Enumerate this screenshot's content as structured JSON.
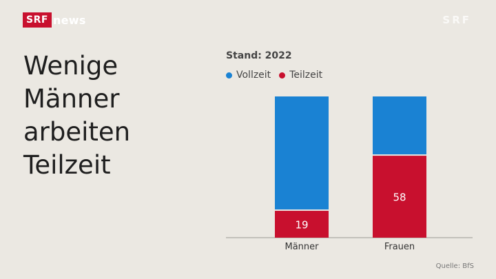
{
  "brand": {
    "srf": "SRF",
    "news": "news",
    "watermark": "SRF"
  },
  "headline": [
    "Wenige",
    "Männer",
    "arbeiten",
    "Teilzeit"
  ],
  "colors": {
    "vollzeit": "#1a82d3",
    "teilzeit": "#c8102e"
  },
  "chart_data": {
    "type": "bar",
    "stacked": true,
    "subtitle": "Stand: 2022",
    "categories": [
      "Männer",
      "Frauen"
    ],
    "series": [
      {
        "name": "Teilzeit",
        "color": "#c8102e",
        "values": [
          19,
          58
        ],
        "labels": [
          "19",
          "58"
        ]
      },
      {
        "name": "Vollzeit",
        "color": "#1a82d3",
        "values": [
          81,
          42
        ],
        "labels": [
          "",
          ""
        ]
      }
    ],
    "legend_position": "top-left",
    "grid": false,
    "source": "Quelle: BfS"
  }
}
